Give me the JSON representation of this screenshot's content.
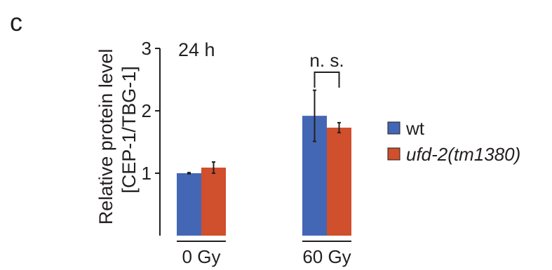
{
  "panel_letter": "c",
  "chart_data": {
    "type": "bar",
    "annotation": "24 h",
    "ylabel_line1": "Relative protein level",
    "ylabel_line2": "[CEP-1/TBG-1]",
    "xlabel": "",
    "categories": [
      "0 Gy",
      "60 Gy"
    ],
    "ylim": [
      0,
      3
    ],
    "yticks": [
      1,
      2,
      3
    ],
    "grid": false,
    "legend_position": "right",
    "series": [
      {
        "name": "wt",
        "color": "#4467b5",
        "values": [
          1.0,
          1.92
        ],
        "errors": [
          0.01,
          0.41
        ],
        "italic": false
      },
      {
        "name": "ufd-2(tm1380)",
        "color": "#d04f2c",
        "values": [
          1.09,
          1.73
        ],
        "errors": [
          0.09,
          0.08
        ],
        "italic": true
      }
    ],
    "significance": {
      "label": "n. s.",
      "category_index": 1
    }
  }
}
